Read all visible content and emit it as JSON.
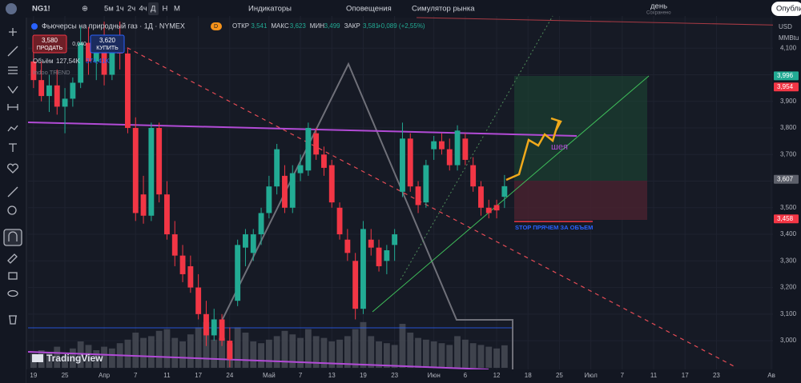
{
  "toolbar": {
    "symbol": "NG1!",
    "intervals": [
      "5м",
      "1ч",
      "2ч",
      "4ч",
      "Д",
      "Н",
      "М"
    ],
    "indicators": "Индикаторы",
    "alerts": "Оповещения",
    "simulator": "Симулятор рынка",
    "layout": "день",
    "saved": "Сохранено",
    "publish": "Опубли"
  },
  "legend": {
    "title": "Фьючерсы на природный газ · 1Д · NYMEX",
    "badge": "D",
    "ohlc": [
      {
        "label": "ОТКР",
        "value": "3,541"
      },
      {
        "label": "МАКС",
        "value": "3,623"
      },
      {
        "label": "МИН",
        "value": "3,499"
      },
      {
        "label": "ЗАКР",
        "value": "3,581"
      }
    ],
    "change": "+0,089 (+2,55%)",
    "sell_price": "3,580",
    "sell": "ПРОДАТЬ",
    "spread": "0,040",
    "buy_price": "3,620",
    "buy": "КУПИТЬ",
    "volume_label": "Объём",
    "volume": "127,54K",
    "volume_ma": "374,41K",
    "indicator": "Indoo TREND"
  },
  "axis_units": {
    "currency": "USD",
    "unit": "MMBtu"
  },
  "brand": "TradingView",
  "annotations": {
    "neck": "шея",
    "stop": "STOP ПРЯЧЕМ ЗА ОБЪЕМ"
  },
  "chart_data": {
    "type": "candlestick",
    "up_color": "#22ab94",
    "down_color": "#f23645",
    "volume_color": "#4a4d57",
    "xlim": [
      -0.7,
      94.2
    ],
    "xticks": [
      {
        "value": 0,
        "label": "19"
      },
      {
        "value": 4,
        "label": "25"
      },
      {
        "value": 9,
        "label": "Апр"
      },
      {
        "value": 13,
        "label": "7"
      },
      {
        "value": 17,
        "label": "11"
      },
      {
        "value": 21,
        "label": "17"
      },
      {
        "value": 25,
        "label": "24"
      },
      {
        "value": 30,
        "label": "Май"
      },
      {
        "value": 34,
        "label": "7"
      },
      {
        "value": 38,
        "label": "13"
      },
      {
        "value": 42,
        "label": "19"
      },
      {
        "value": 46,
        "label": "23"
      },
      {
        "value": 51,
        "label": "Июн"
      },
      {
        "value": 55,
        "label": "6"
      },
      {
        "value": 59,
        "label": "12"
      },
      {
        "value": 63,
        "label": "18"
      },
      {
        "value": 67,
        "label": "25"
      },
      {
        "value": 71,
        "label": "Июл"
      },
      {
        "value": 75,
        "label": "7"
      },
      {
        "value": 79,
        "label": "11"
      },
      {
        "value": 83,
        "label": "17"
      },
      {
        "value": 87,
        "label": "23"
      },
      {
        "value": 94,
        "label": "Ав"
      }
    ],
    "ylim": [
      2.892,
      4.221
    ],
    "yticks": [
      {
        "value": 3.0,
        "label": "3,000"
      },
      {
        "value": 3.1,
        "label": "3,100"
      },
      {
        "value": 3.2,
        "label": "3,200"
      },
      {
        "value": 3.3,
        "label": "3,300"
      },
      {
        "value": 3.4,
        "label": "3,400"
      },
      {
        "value": 3.5,
        "label": "3,500"
      },
      {
        "value": 3.6,
        "label": "3,600"
      },
      {
        "value": 3.7,
        "label": "3,700"
      },
      {
        "value": 3.8,
        "label": "3,800"
      },
      {
        "value": 3.9,
        "label": "3,900"
      },
      {
        "value": 4.0,
        "label": "4,000"
      },
      {
        "value": 4.1,
        "label": "4,100"
      }
    ],
    "y2lim": [
      0,
      500
    ],
    "price_labels": [
      {
        "value": 3.996,
        "label": "3,996",
        "color": "#22ab94"
      },
      {
        "value": 3.954,
        "label": "3,954",
        "color": "#f23645"
      },
      {
        "value": 3.607,
        "label": "3,607",
        "color": "#5d606b"
      },
      {
        "value": 3.458,
        "label": "3,458",
        "color": "#f23645"
      }
    ],
    "open": [
      4.05,
      3.98,
      3.92,
      3.96,
      3.88,
      3.91,
      3.97,
      4.12,
      4.05,
      4.1,
      4.0,
      4.14,
      4.08,
      3.8,
      3.55,
      3.47,
      3.8,
      3.55,
      3.4,
      3.32,
      3.28,
      3.2,
      3.1,
      3.02,
      3.08,
      3.0,
      3.15,
      3.35,
      3.33,
      3.4,
      3.48,
      3.58,
      3.62,
      3.5,
      3.63,
      3.64,
      3.78,
      3.7,
      3.66,
      3.5,
      3.38,
      3.3,
      3.12,
      3.38,
      3.35,
      3.3,
      3.36,
      3.56,
      3.76,
      3.58,
      3.52,
      3.72,
      3.75,
      3.72,
      3.66,
      3.76,
      3.66,
      3.58,
      3.5,
      3.51,
      3.541
    ],
    "high": [
      4.12,
      4.05,
      4.0,
      4.02,
      3.95,
      3.99,
      4.18,
      4.18,
      4.12,
      4.2,
      4.15,
      4.2,
      4.1,
      3.84,
      3.62,
      3.82,
      3.82,
      3.6,
      3.45,
      3.36,
      3.32,
      3.25,
      3.15,
      3.12,
      3.1,
      3.05,
      3.38,
      3.42,
      3.42,
      3.5,
      3.62,
      3.74,
      3.66,
      3.66,
      3.7,
      3.82,
      3.8,
      3.73,
      3.68,
      3.52,
      3.42,
      3.33,
      3.45,
      3.42,
      3.38,
      3.36,
      3.42,
      3.82,
      3.78,
      3.6,
      3.68,
      3.77,
      3.78,
      3.76,
      3.81,
      3.78,
      3.69,
      3.6,
      3.53,
      3.53,
      3.623
    ],
    "low": [
      3.95,
      3.9,
      3.86,
      3.85,
      3.78,
      3.88,
      3.95,
      4.0,
      3.98,
      3.96,
      3.98,
      4.02,
      3.78,
      3.45,
      3.44,
      3.45,
      3.52,
      3.38,
      3.28,
      3.22,
      3.18,
      3.08,
      2.98,
      3.0,
      2.98,
      2.9,
      3.13,
      3.28,
      3.3,
      3.36,
      3.46,
      3.55,
      3.48,
      3.48,
      3.6,
      3.62,
      3.68,
      3.62,
      3.5,
      3.38,
      3.3,
      3.08,
      3.1,
      3.32,
      3.26,
      3.25,
      3.3,
      3.54,
      3.56,
      3.48,
      3.5,
      3.68,
      3.7,
      3.64,
      3.64,
      3.66,
      3.56,
      3.47,
      3.46,
      3.46,
      3.499
    ],
    "close": [
      3.98,
      3.92,
      3.96,
      3.88,
      3.91,
      3.97,
      4.12,
      4.05,
      4.1,
      4.0,
      4.14,
      4.08,
      3.8,
      3.48,
      3.47,
      3.8,
      3.55,
      3.4,
      3.32,
      3.25,
      3.2,
      3.1,
      3.02,
      3.08,
      3.0,
      2.93,
      3.36,
      3.4,
      3.4,
      3.48,
      3.58,
      3.72,
      3.5,
      3.63,
      3.66,
      3.8,
      3.7,
      3.65,
      3.52,
      3.4,
      3.33,
      3.12,
      3.42,
      3.35,
      3.28,
      3.34,
      3.4,
      3.76,
      3.58,
      3.51,
      3.66,
      3.75,
      3.72,
      3.66,
      3.79,
      3.68,
      3.58,
      3.5,
      3.48,
      3.49,
      3.581
    ],
    "volume": [
      80,
      100,
      90,
      120,
      70,
      110,
      150,
      130,
      100,
      120,
      110,
      140,
      160,
      200,
      170,
      180,
      210,
      220,
      170,
      150,
      190,
      230,
      260,
      160,
      170,
      140,
      230,
      200,
      150,
      140,
      160,
      180,
      210,
      190,
      170,
      220,
      180,
      170,
      150,
      160,
      180,
      220,
      260,
      180,
      150,
      140,
      130,
      250,
      200,
      170,
      160,
      150,
      140,
      130,
      180,
      160,
      140,
      130,
      120,
      110,
      128
    ]
  }
}
